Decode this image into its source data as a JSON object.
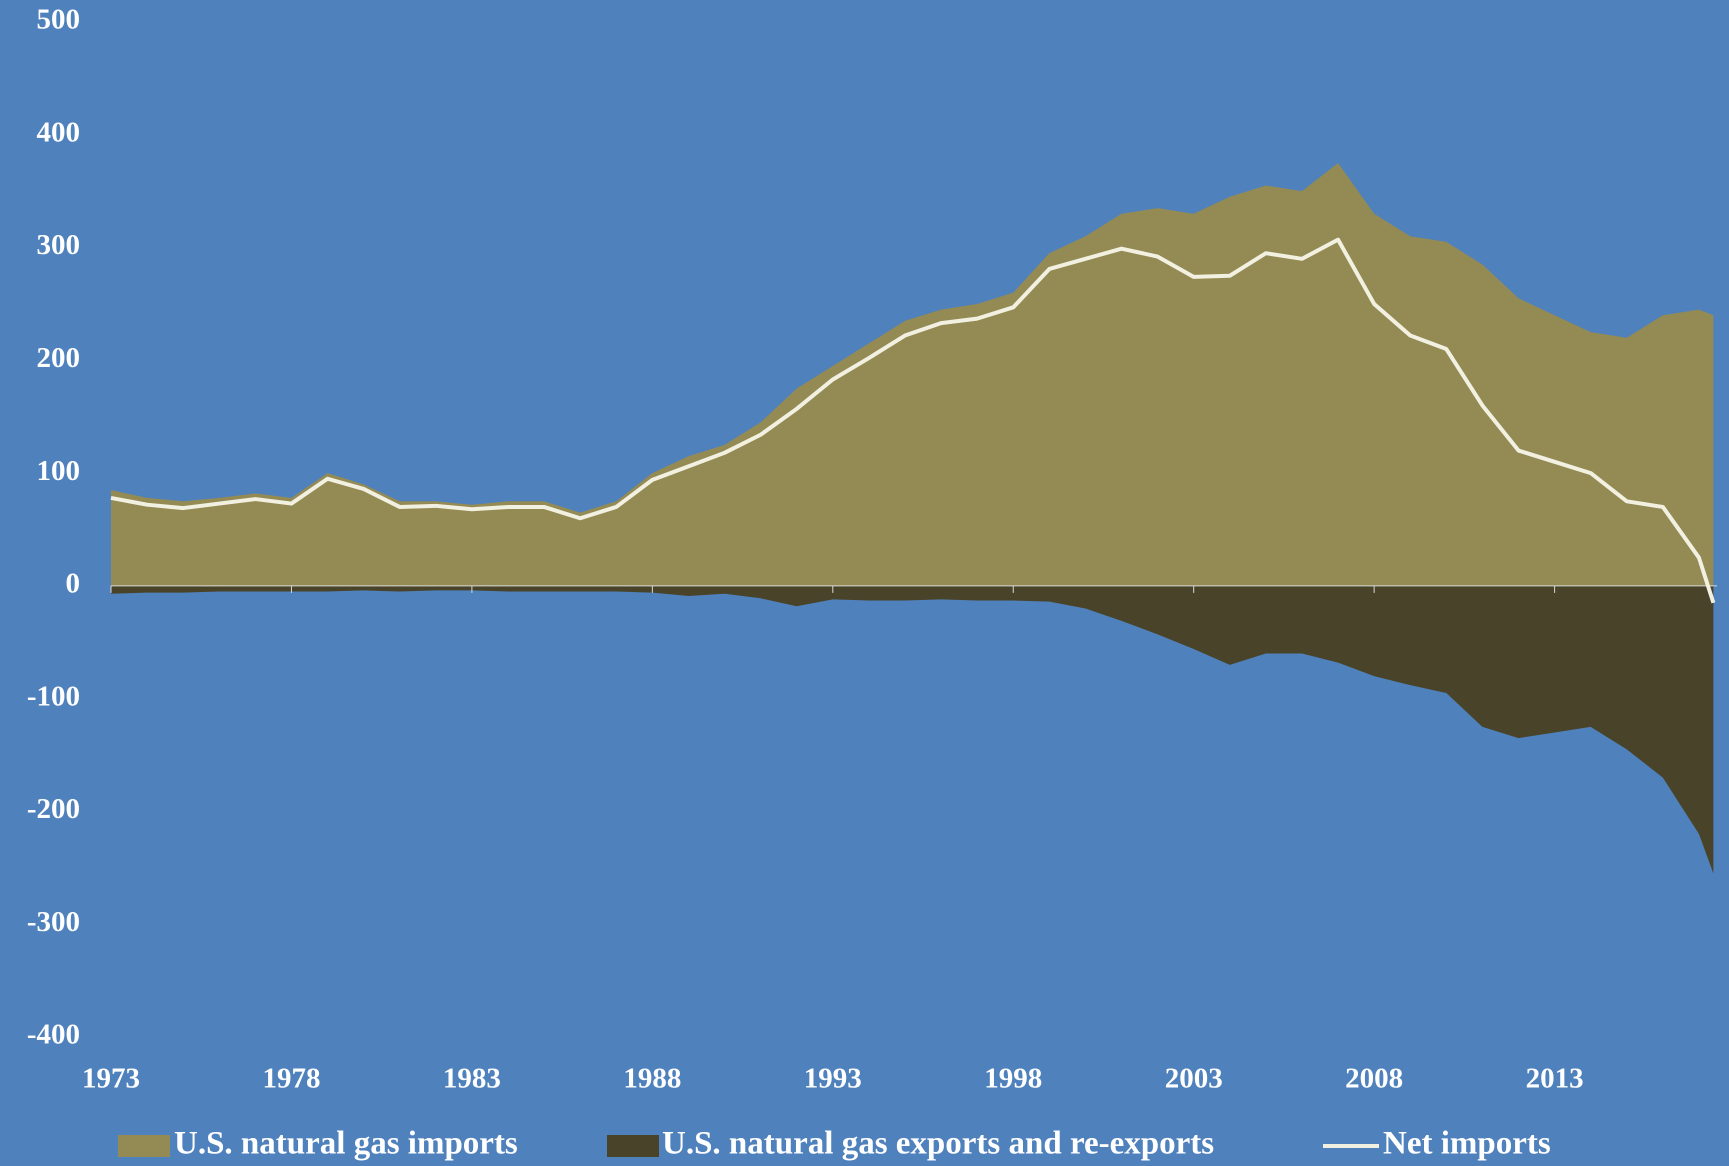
{
  "chart_data": {
    "type": "area",
    "x": [
      1973,
      1974,
      1975,
      1976,
      1977,
      1978,
      1979,
      1980,
      1981,
      1982,
      1983,
      1984,
      1985,
      1986,
      1987,
      1988,
      1989,
      1990,
      1991,
      1992,
      1993,
      1994,
      1995,
      1996,
      1997,
      1998,
      1999,
      2000,
      2001,
      2002,
      2003,
      2004,
      2005,
      2006,
      2007,
      2008,
      2009,
      2010,
      2011,
      2012,
      2013,
      2014,
      2015,
      2016,
      2017,
      2017.4
    ],
    "series": [
      {
        "name": "U.S. natural gas imports",
        "color": "#948a54",
        "kind": "area",
        "values": [
          85,
          78,
          75,
          78,
          82,
          78,
          100,
          90,
          75,
          75,
          72,
          75,
          75,
          65,
          75,
          100,
          115,
          125,
          145,
          175,
          195,
          215,
          235,
          245,
          250,
          260,
          295,
          310,
          330,
          335,
          330,
          345,
          355,
          350,
          375,
          330,
          310,
          305,
          285,
          255,
          240,
          225,
          220,
          240,
          245,
          240
        ]
      },
      {
        "name": "U.S. natural gas exports and re-exports",
        "color": "#494429",
        "kind": "area",
        "values": [
          -7,
          -6,
          -6,
          -5,
          -5,
          -5,
          -5,
          -4,
          -5,
          -4,
          -4,
          -5,
          -5,
          -5,
          -5,
          -6,
          -9,
          -7,
          -11,
          -18,
          -12,
          -13,
          -13,
          -12,
          -13,
          -13,
          -14,
          -20,
          -31,
          -43,
          -56,
          -70,
          -60,
          -60,
          -68,
          -80,
          -88,
          -95,
          -125,
          -135,
          -130,
          -125,
          -145,
          -170,
          -220,
          -255
        ]
      },
      {
        "name": "Net imports",
        "color": "#f2f0e0",
        "kind": "line",
        "values": [
          78,
          72,
          69,
          73,
          77,
          73,
          95,
          86,
          70,
          71,
          68,
          70,
          70,
          60,
          70,
          94,
          106,
          118,
          134,
          157,
          183,
          202,
          222,
          233,
          237,
          247,
          281,
          290,
          299,
          292,
          274,
          275,
          295,
          290,
          307,
          250,
          222,
          210,
          160,
          120,
          110,
          100,
          75,
          70,
          25,
          -15
        ]
      }
    ],
    "xlim": [
      1973,
      2017.5
    ],
    "xticks": [
      1973,
      1978,
      1983,
      1988,
      1993,
      1998,
      2003,
      2008,
      2013
    ],
    "ylim": [
      -400,
      500
    ],
    "yticks": [
      -400,
      -300,
      -200,
      -100,
      0,
      100,
      200,
      300,
      400,
      500
    ]
  }
}
